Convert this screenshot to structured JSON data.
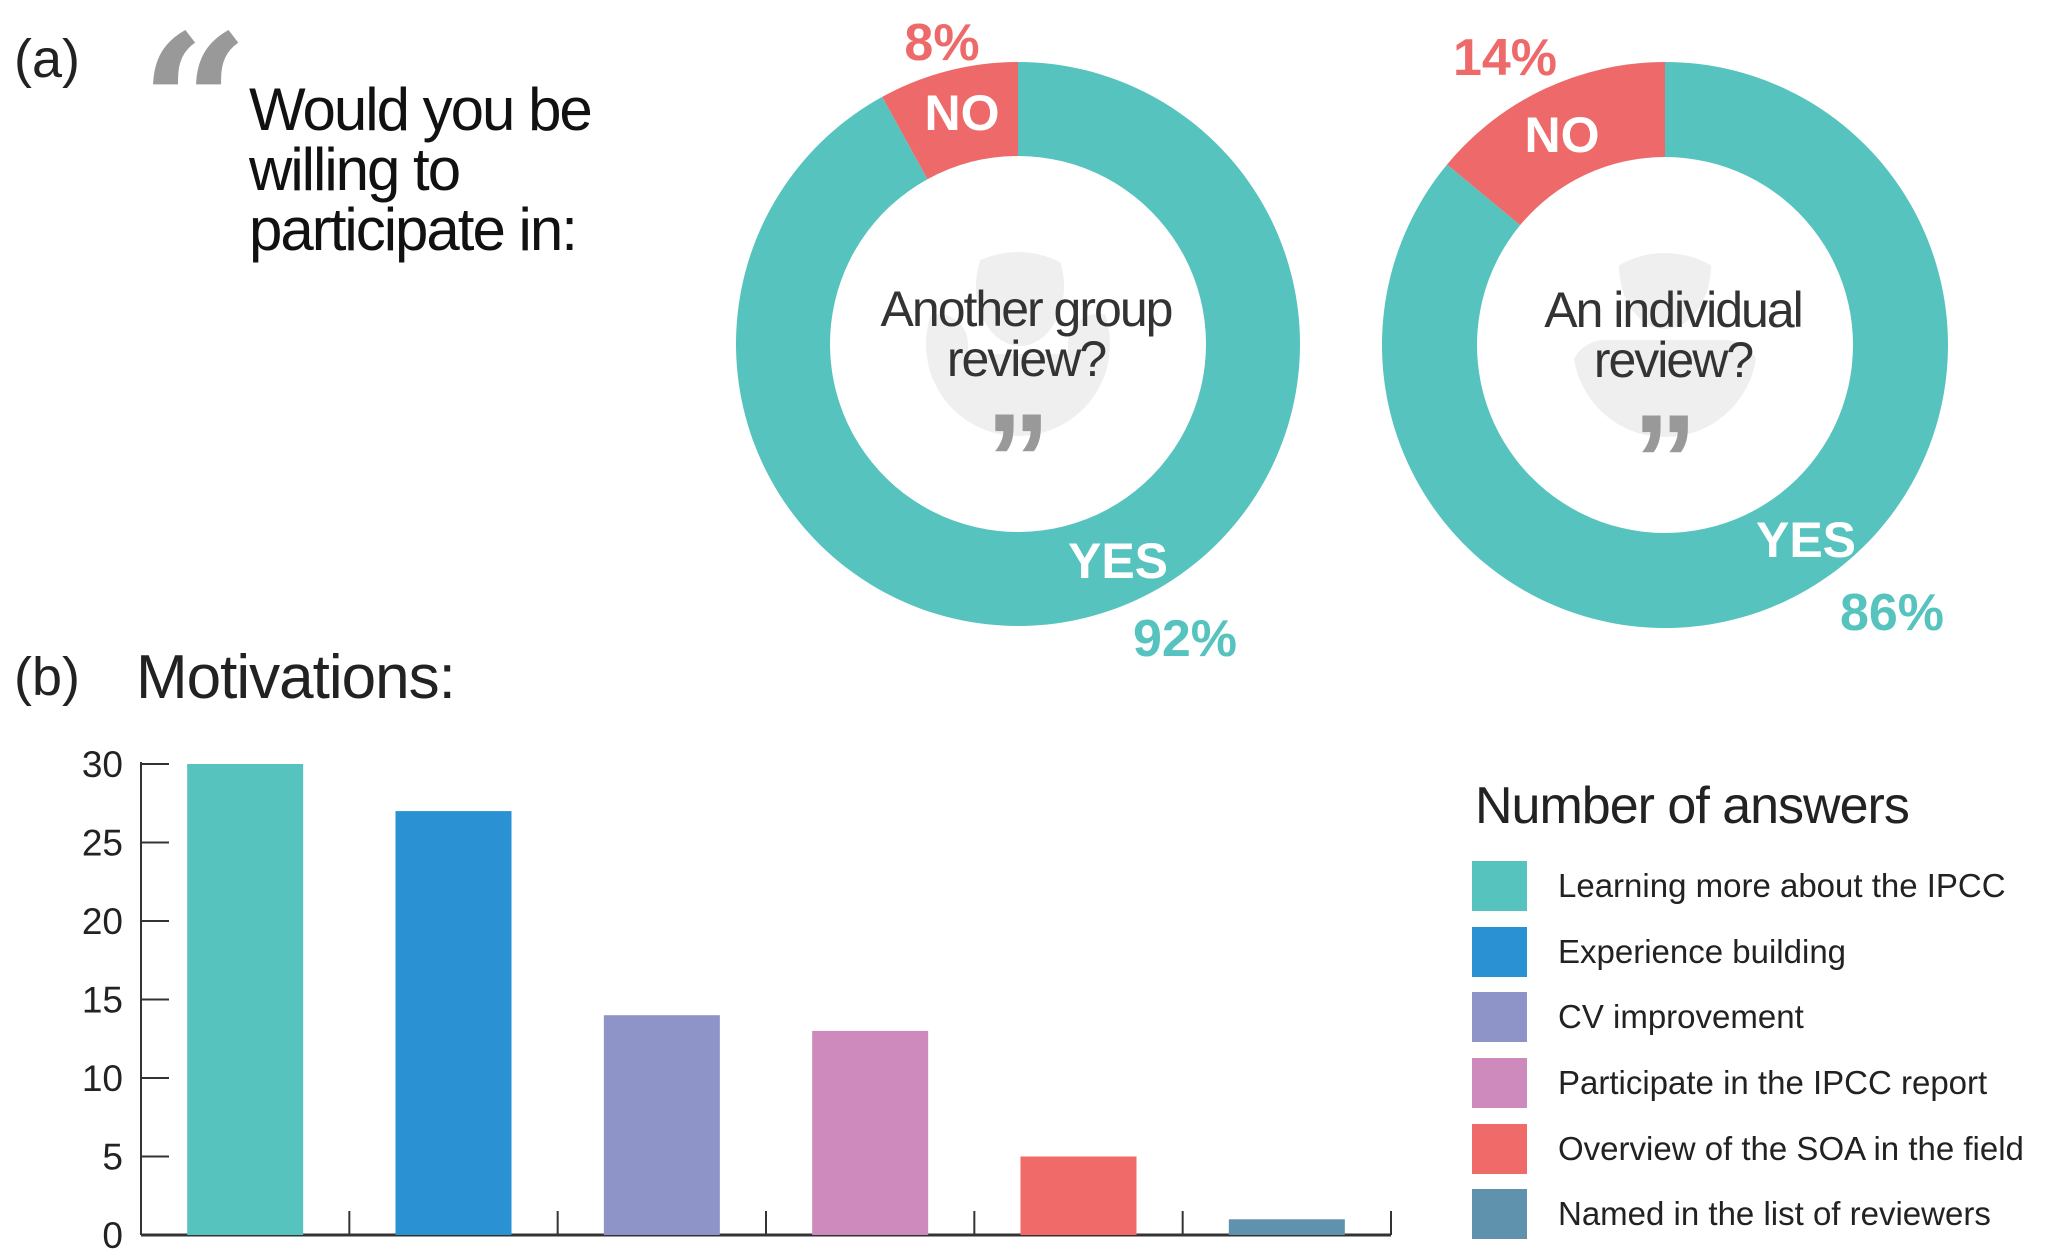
{
  "panel_a": {
    "label": "(a)",
    "question_lines": [
      "Would you be",
      "willing to",
      "participate in:"
    ],
    "quote_icon": "open-quote-icon"
  },
  "panel_b": {
    "label": "(b)",
    "title": "Motivations:"
  },
  "colors": {
    "yes": "#56C3BE",
    "no": "#EE6A6A",
    "people_silhouette": "#EFEFEF",
    "quote_marks": "#999999"
  },
  "chart_data": [
    {
      "type": "pie",
      "variant": "donut",
      "center_text": [
        "Another group",
        "review?"
      ],
      "icon": "group-people-icon",
      "slices": [
        {
          "label": "NO",
          "value": 8,
          "value_label": "8%",
          "color": "#EE6A6A"
        },
        {
          "label": "YES",
          "value": 92,
          "value_label": "92%",
          "color": "#56C3BE"
        }
      ]
    },
    {
      "type": "pie",
      "variant": "donut",
      "center_text": [
        "An individual",
        "review?"
      ],
      "icon": "single-person-icon",
      "slices": [
        {
          "label": "NO",
          "value": 14,
          "value_label": "14%",
          "color": "#EE6A6A"
        },
        {
          "label": "YES",
          "value": 86,
          "value_label": "86%",
          "color": "#56C3BE"
        }
      ]
    },
    {
      "type": "bar",
      "title": "",
      "xlabel": "",
      "ylabel": "",
      "ylim": [
        0,
        30
      ],
      "yticks": [
        0,
        5,
        10,
        15,
        20,
        25,
        30
      ],
      "grid": false,
      "legend_title": "Number of answers",
      "legend_position": "right",
      "categories": [
        "Learning more about the IPCC",
        "Experience  building",
        "CV improvement",
        "Participate in the IPCC report",
        "Overview of the SOA in the field",
        "Named in the list of reviewers"
      ],
      "values": [
        30,
        27,
        14,
        13,
        5,
        1
      ],
      "colors": [
        "#56C3BE",
        "#2A92D3",
        "#8E93C8",
        "#CE8ABD",
        "#F06A6A",
        "#5E92AD"
      ]
    }
  ]
}
